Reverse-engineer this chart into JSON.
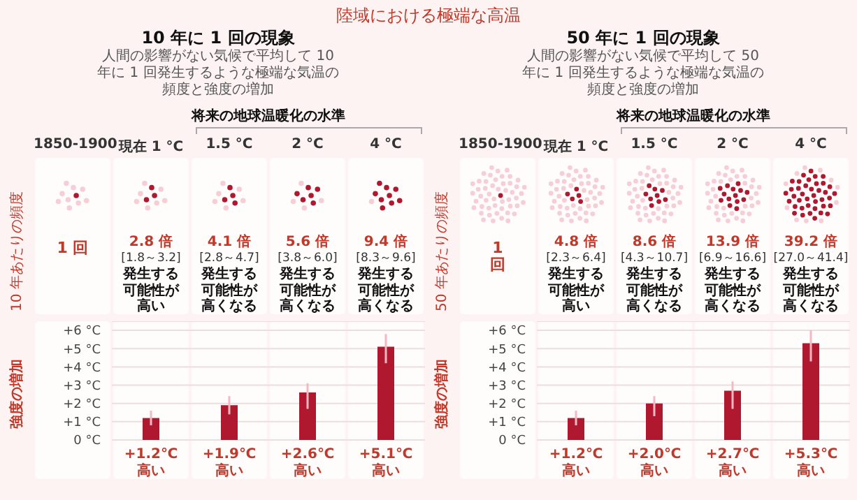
{
  "chart_data": [
    {
      "type": "bar",
      "title": "10 年に 1 回の現象",
      "subtitle": "人間の影響がない気候で平均して 10 年に 1 回発生するような極端な気温の頻度と強度の増加",
      "ylabel": "強度の増加",
      "categories": [
        "現在 1 °C",
        "1.5 °C",
        "2 °C",
        "4 °C"
      ],
      "values": [
        1.2,
        1.9,
        2.6,
        5.1
      ],
      "color": "#b0182f",
      "errors": [
        [
          0.8,
          1.6
        ],
        [
          1.4,
          2.4
        ],
        [
          1.7,
          3.1
        ],
        [
          4.2,
          5.8
        ]
      ],
      "value_labels": [
        "+1.2℃\n高い",
        "+1.9℃\n高い",
        "+2.6℃\n高い",
        "+5.1℃\n高い"
      ],
      "ylim": [
        0,
        6.5
      ],
      "yticks": [
        {
          "value": 0,
          "label": "0 °C"
        },
        {
          "value": 1,
          "label": "+1 °C"
        },
        {
          "value": 2,
          "label": "+2 °C"
        },
        {
          "value": 3,
          "label": "+3 °C"
        },
        {
          "value": 4,
          "label": "+4 °C"
        },
        {
          "value": 5,
          "label": "+5 °C"
        },
        {
          "value": 6,
          "label": "+6 °C"
        }
      ],
      "grid": "y",
      "tick_labels": "y",
      "annotations": [
        "将来の地球温暖化の水準",
        "10 年あたりの頻度",
        "1850-1900",
        "1 回",
        "2.8 倍\n[1.8～3.2]\n発生する可能性が高い",
        "4.1 倍\n[2.8～4.7]\n発生する可能性が高くなる",
        "5.6 倍\n[3.8～6.0]\n発生する可能性が高くなる",
        "9.4 倍\n[8.3～9.6]\n発生する可能性が高くなる",
        "陸域における極端な高温"
      ]
    },
    {
      "type": "bar",
      "title": "50 年に 1 回の現象",
      "subtitle": "人間の影響がない気候で平均して 50 年に 1 回発生するような極端な気温の頻度と強度の増加",
      "ylabel": "強度の増加",
      "categories": [
        "現在 1 °C",
        "1.5 °C",
        "2 °C",
        "4 °C"
      ],
      "values": [
        1.2,
        2.0,
        2.7,
        5.3
      ],
      "color": "#b0182f",
      "errors": [
        [
          0.8,
          1.6
        ],
        [
          1.3,
          2.4
        ],
        [
          1.7,
          3.2
        ],
        [
          4.3,
          6.0
        ]
      ],
      "value_labels": [
        "+1.2℃\n高い",
        "+2.0℃\n高い",
        "+2.7℃\n高い",
        "+5.3℃\n高い"
      ],
      "ylim": [
        0,
        6.5
      ],
      "yticks": [
        {
          "value": 0,
          "label": "0 °C"
        },
        {
          "value": 1,
          "label": "+1 °C"
        },
        {
          "value": 2,
          "label": "+2 °C"
        },
        {
          "value": 3,
          "label": "+3 °C"
        },
        {
          "value": 4,
          "label": "+4 °C"
        },
        {
          "value": 5,
          "label": "+5 °C"
        },
        {
          "value": 6,
          "label": "+6 °C"
        }
      ],
      "grid": "y",
      "tick_labels": "y",
      "annotations": [
        "将来の地球温暖化の水準",
        "50 年あたりの頻度",
        "1850-1900",
        "1\n回",
        "4.8 倍\n[2.3～6.4]\n発生する可能性が高い",
        "8.6 倍\n[4.3～10.7]\n発生する可能性が高くなる",
        "13.9 倍\n[6.9～16.6]\n発生する可能性が高くなる",
        "39.2 倍\n[27.0～41.4]\n発生する可能性が高くなる"
      ]
    }
  ]
}
